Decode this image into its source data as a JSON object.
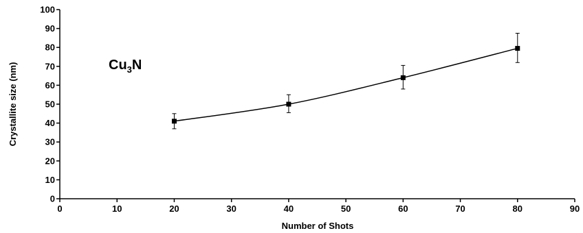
{
  "chart_data": {
    "type": "line",
    "xlabel": "Number of Shots",
    "ylabel": "Crystallite size (nm)",
    "xlim": [
      0,
      90
    ],
    "ylim": [
      0,
      100
    ],
    "xticks": [
      0,
      10,
      20,
      30,
      40,
      50,
      60,
      70,
      80,
      90
    ],
    "yticks": [
      0,
      10,
      20,
      30,
      40,
      50,
      60,
      70,
      80,
      90,
      100
    ],
    "grid": false,
    "annotation": {
      "base": "Cu",
      "sub": "3",
      "tail": "N"
    },
    "series": [
      {
        "x": [
          20,
          40,
          60,
          80
        ],
        "y": [
          41,
          50,
          64,
          79.5
        ],
        "error_upper": [
          45,
          55,
          70.5,
          87.5
        ],
        "error_lower": [
          37,
          45.5,
          58,
          72
        ],
        "marker": "square",
        "line": "smooth",
        "color": "#000000"
      }
    ]
  }
}
